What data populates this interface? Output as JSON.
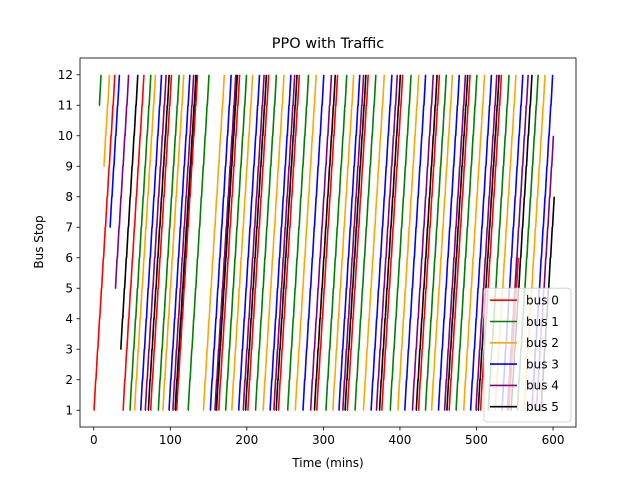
{
  "chart_data": {
    "type": "line",
    "title": "PPO with Traffic",
    "xlabel": "Time (mins)",
    "ylabel": "Bus Stop",
    "xlim": [
      -18,
      630
    ],
    "ylim": [
      0.45,
      12.55
    ],
    "xticks": [
      0,
      100,
      200,
      300,
      400,
      500,
      600
    ],
    "yticks": [
      1,
      2,
      3,
      4,
      5,
      6,
      7,
      8,
      9,
      10,
      11,
      12
    ],
    "grid": false,
    "legend_position": "lower-right",
    "stop_travel_minutes": 2.5,
    "series": [
      {
        "name": "bus 0",
        "color": "#ff0000",
        "start_stop": 1,
        "trip_starts": [
          0,
          38,
          74,
          108,
          163,
          201,
          241,
          291,
          331,
          376,
          424,
          464,
          505,
          542
        ],
        "last_stop": 6
      },
      {
        "name": "bus 1",
        "color": "#008000",
        "start_stop": 11,
        "trip_starts": [
          7,
          47,
          84,
          123,
          172,
          211,
          253,
          303,
          341,
          387,
          433,
          473,
          515,
          553
        ],
        "last_stop": 12
      },
      {
        "name": "bus 2",
        "color": "#ffa500",
        "start_stop": 9,
        "trip_starts": [
          13,
          53,
          90,
          143,
          180,
          221,
          263,
          312,
          352,
          397,
          441,
          483,
          524,
          562
        ],
        "last_stop": 12
      },
      {
        "name": "bus 3",
        "color": "#0000ff",
        "start_stop": 7,
        "trip_starts": [
          21,
          61,
          98,
          152,
          189,
          230,
          273,
          320,
          362,
          406,
          450,
          492,
          533,
          572
        ],
        "last_stop": 12
      },
      {
        "name": "bus 4",
        "color": "#800080",
        "start_stop": 5,
        "trip_starts": [
          28,
          67,
          103,
          158,
          195,
          235,
          283,
          325,
          369,
          416,
          458,
          499,
          540,
          578
        ],
        "last_stop": 10
      },
      {
        "name": "bus 5",
        "color": "#000000",
        "start_stop": 3,
        "trip_starts": [
          35,
          71,
          106,
          160,
          198,
          238,
          288,
          328,
          373,
          421,
          461,
          502,
          545,
          584
        ],
        "last_stop": 8
      }
    ]
  }
}
